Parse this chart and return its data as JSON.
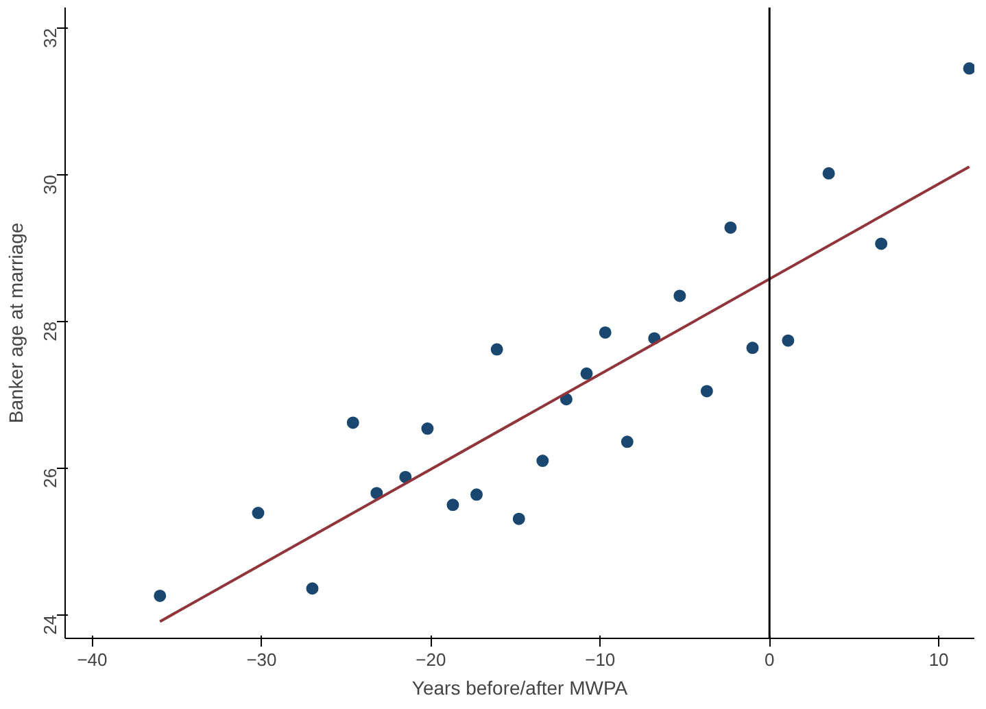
{
  "chart_data": {
    "type": "scatter",
    "xlabel": "Years before/after MWPA",
    "ylabel": "Banker age at marriage",
    "xlim": [
      -41.6,
      12.1
    ],
    "xticks": [
      -40,
      -30,
      -20,
      -10,
      0,
      10
    ],
    "ylim": [
      23.68,
      32.28
    ],
    "yticks": [
      24,
      26,
      28,
      30,
      32
    ],
    "grid": false,
    "series": [
      {
        "marker": "circle",
        "color": "#1a476f",
        "x": [
          -36.0,
          -30.2,
          -27.0,
          -24.6,
          -23.2,
          -21.5,
          -20.2,
          -18.7,
          -17.3,
          -16.1,
          -14.8,
          -13.4,
          -12.0,
          -10.8,
          -9.7,
          -8.4,
          -6.8,
          -5.3,
          -3.7,
          -2.3,
          -1.0,
          1.1,
          3.5,
          6.6,
          11.8
        ],
        "values": [
          24.26,
          25.39,
          24.36,
          26.62,
          25.66,
          25.88,
          26.54,
          25.5,
          25.64,
          27.62,
          25.31,
          26.1,
          26.94,
          27.29,
          27.85,
          26.36,
          27.77,
          28.35,
          27.05,
          29.28,
          27.64,
          27.74,
          30.02,
          29.06,
          31.45
        ]
      },
      {
        "type": "line",
        "marker": "none",
        "color": "#90353b",
        "x": [
          -36.0,
          11.8
        ],
        "values": [
          23.91,
          30.11
        ]
      }
    ],
    "ref_lines": [
      {
        "axis": "x",
        "value": 0,
        "color": "#000000"
      }
    ]
  }
}
